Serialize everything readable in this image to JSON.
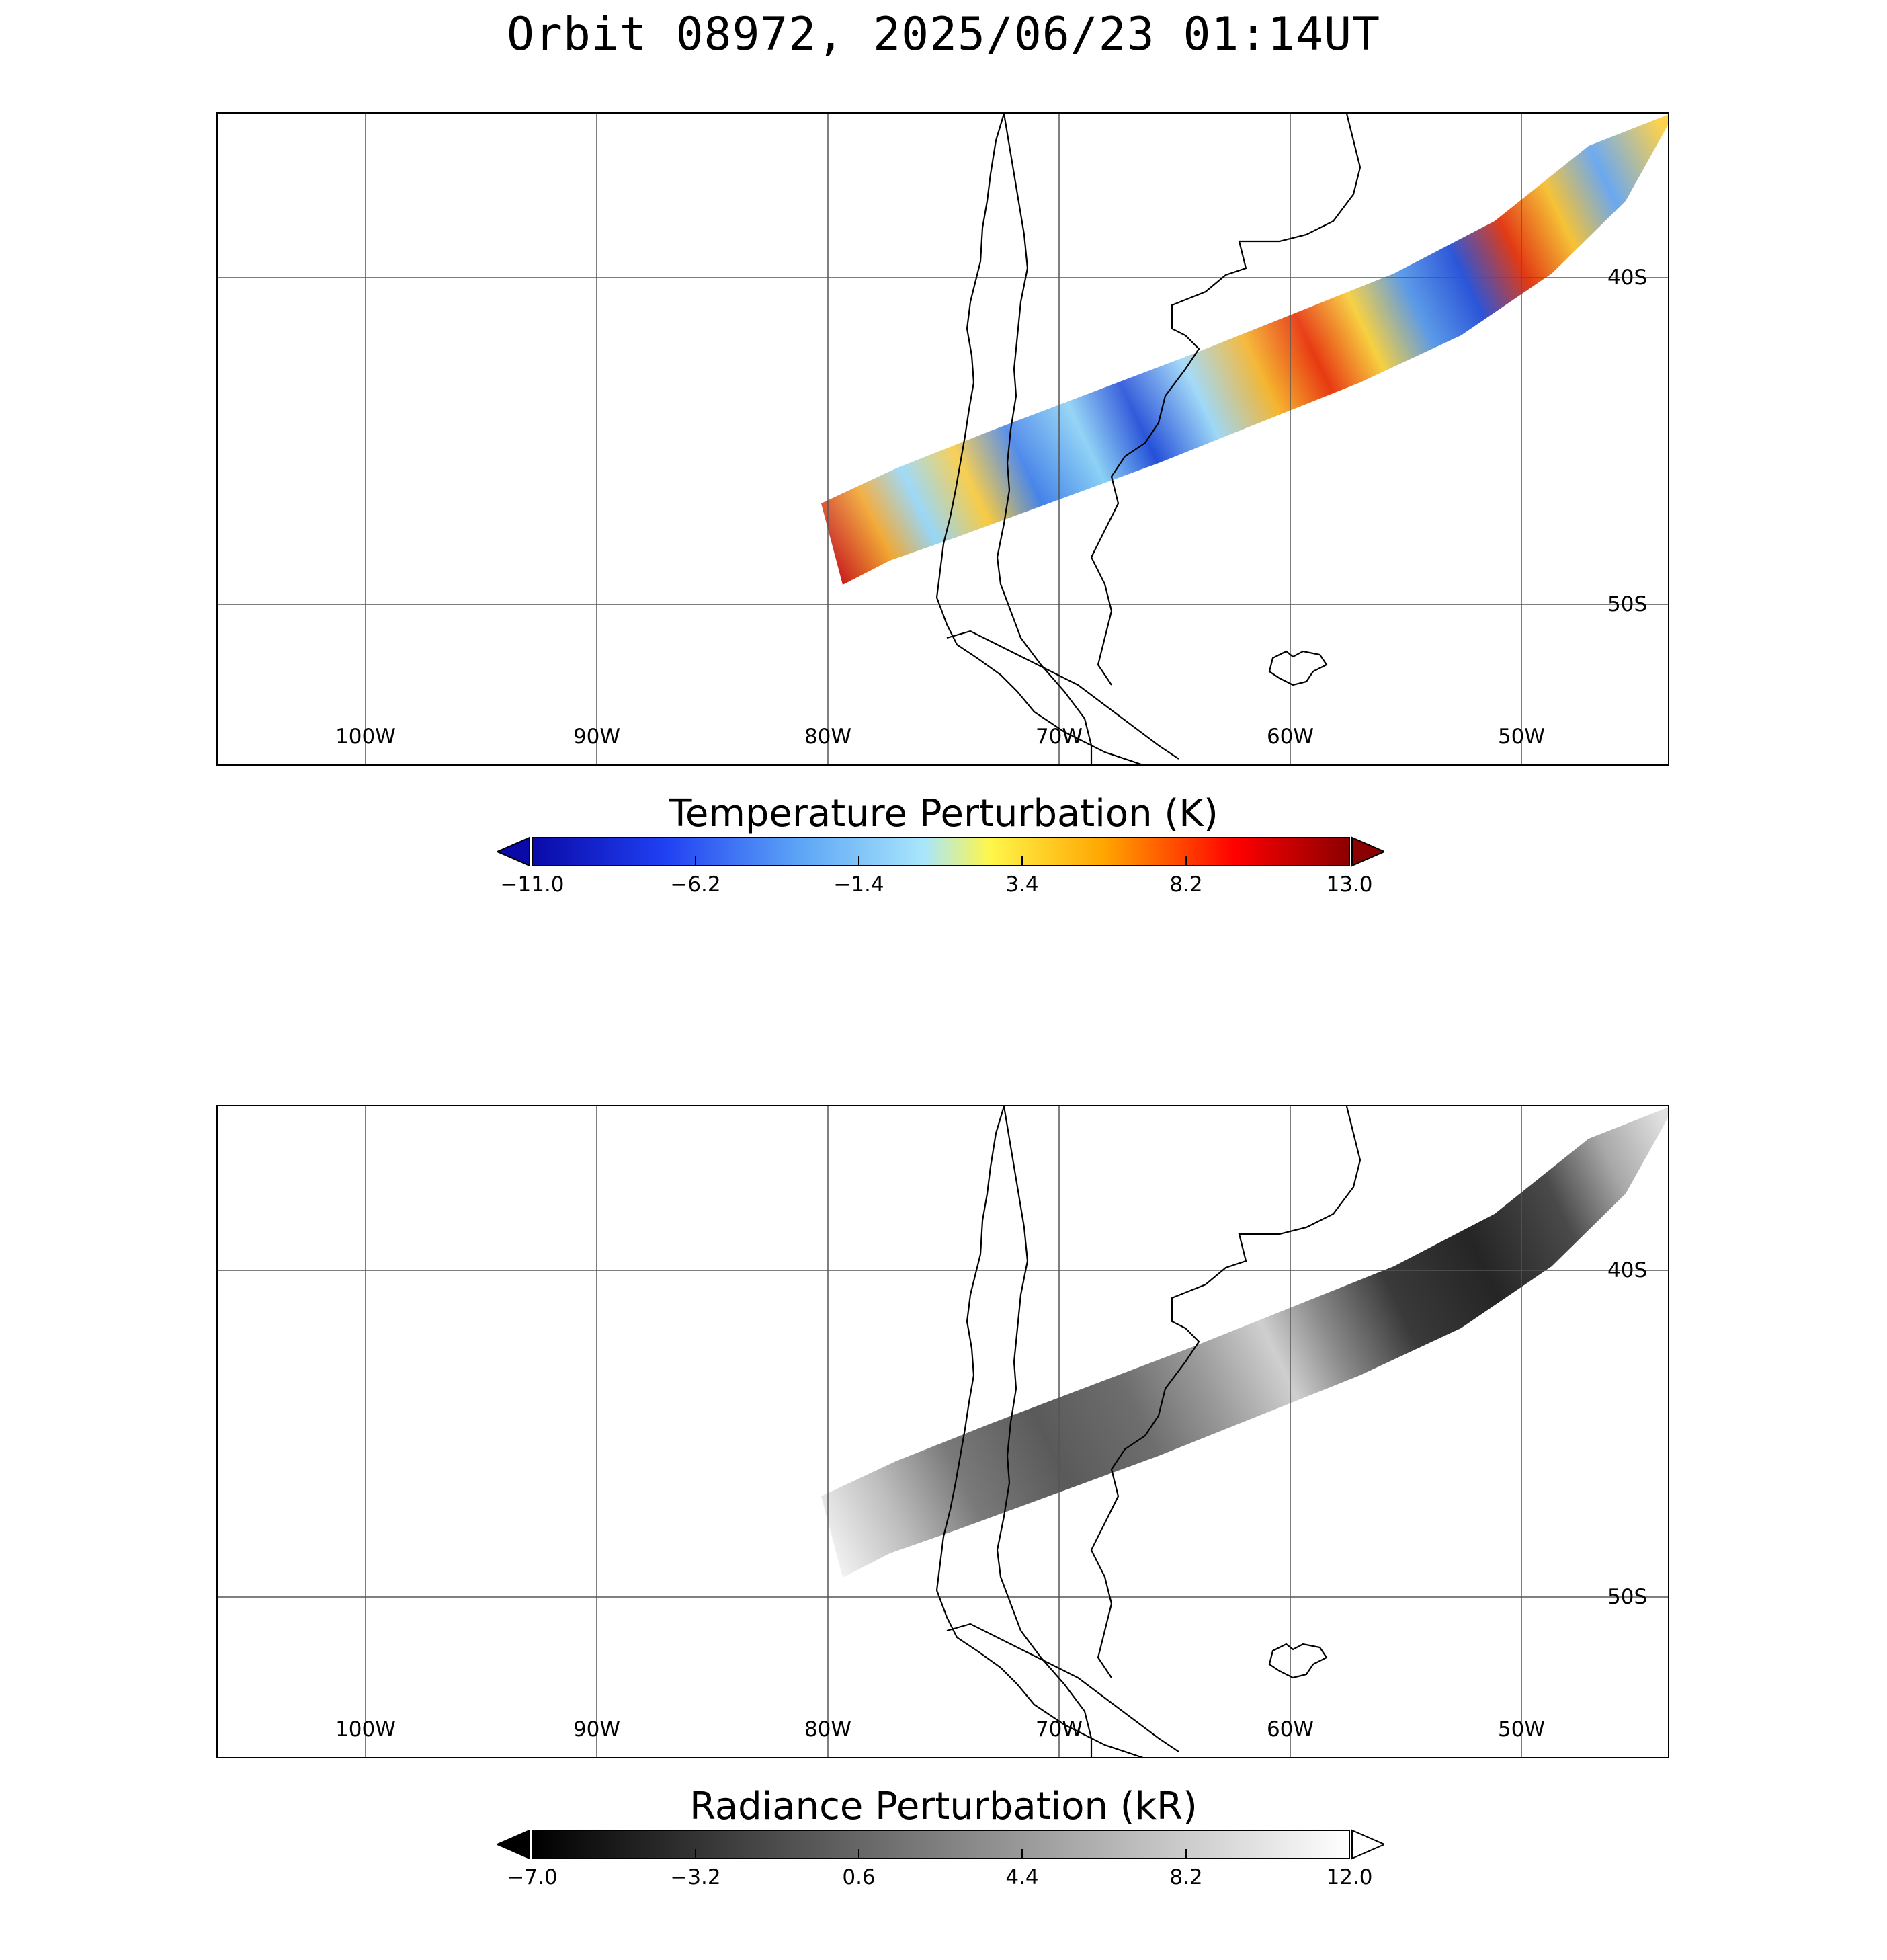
{
  "title": "Orbit 08972, 2025/06/23 01:14UT",
  "map": {
    "lon_labels": [
      "100W",
      "90W",
      "80W",
      "70W",
      "60W",
      "50W"
    ],
    "lat_labels": [
      "40S",
      "50S"
    ]
  },
  "panels": [
    {
      "name": "temperature",
      "colorbar": {
        "title": "Temperature Perturbation (K)",
        "ticks": [
          "−11.0",
          "−6.2",
          "−1.4",
          "3.4",
          "8.2",
          "13.0"
        ],
        "colors": [
          "#0a0aa8",
          "#1f3ff2",
          "#5ea6f6",
          "#a9e6fb",
          "#fff64a",
          "#ffa500",
          "#ff0000",
          "#8b0000"
        ]
      }
    },
    {
      "name": "radiance",
      "colorbar": {
        "title": "Radiance Perturbation (kR)",
        "ticks": [
          "−7.0",
          "−3.2",
          "0.6",
          "4.4",
          "8.2",
          "12.0"
        ],
        "colors": [
          "#000000",
          "#ffffff"
        ]
      }
    }
  ]
}
